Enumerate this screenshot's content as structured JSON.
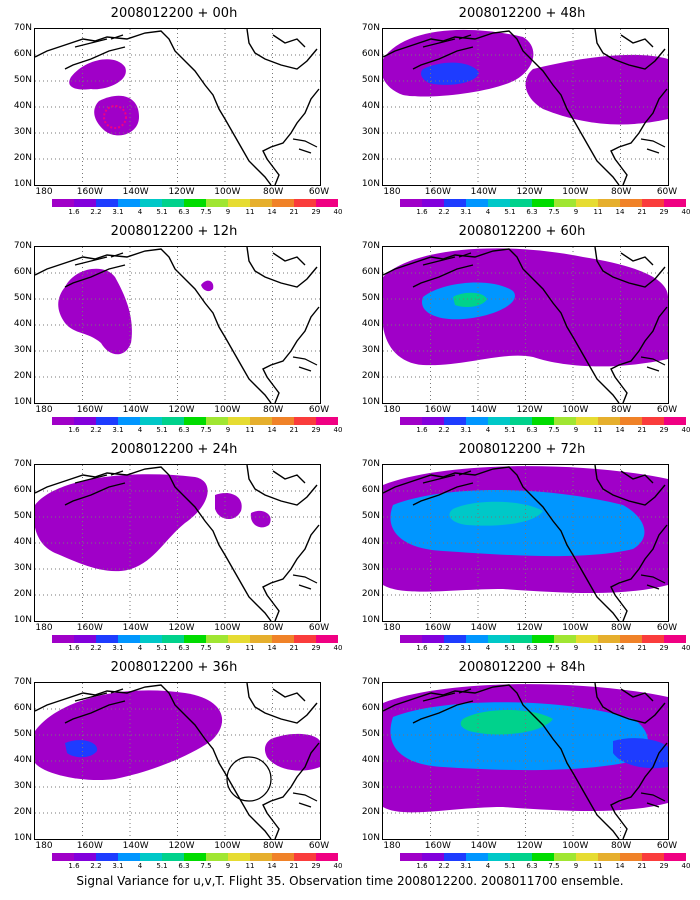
{
  "panels": [
    {
      "title": "2008012200 + 00h"
    },
    {
      "title": "2008012200 + 48h"
    },
    {
      "title": "2008012200 + 12h"
    },
    {
      "title": "2008012200 + 60h"
    },
    {
      "title": "2008012200 + 24h"
    },
    {
      "title": "2008012200 + 72h"
    },
    {
      "title": "2008012200 + 36h"
    },
    {
      "title": "2008012200 + 84h"
    }
  ],
  "lat_labels": [
    "70N",
    "60N",
    "50N",
    "40N",
    "30N",
    "20N",
    "10N"
  ],
  "lon_labels": [
    "180",
    "160W",
    "140W",
    "120W",
    "100W",
    "80W",
    "60W"
  ],
  "colorbar": {
    "labels": [
      "1.6",
      "2.2",
      "3.1",
      "4",
      "5.1",
      "6.3",
      "7.5",
      "9",
      "11",
      "14",
      "21",
      "29",
      "40"
    ],
    "colors": [
      "#a000c8",
      "#8200dc",
      "#1e3cff",
      "#0096ff",
      "#00c8c8",
      "#00d28c",
      "#00dc00",
      "#a0e632",
      "#e6dc32",
      "#e6af2d",
      "#f08228",
      "#fa3c3c",
      "#f00082"
    ]
  },
  "caption": "Signal Variance for u,v,T. Flight 35. Observation time 2008012200. 2008011700 ensemble."
}
